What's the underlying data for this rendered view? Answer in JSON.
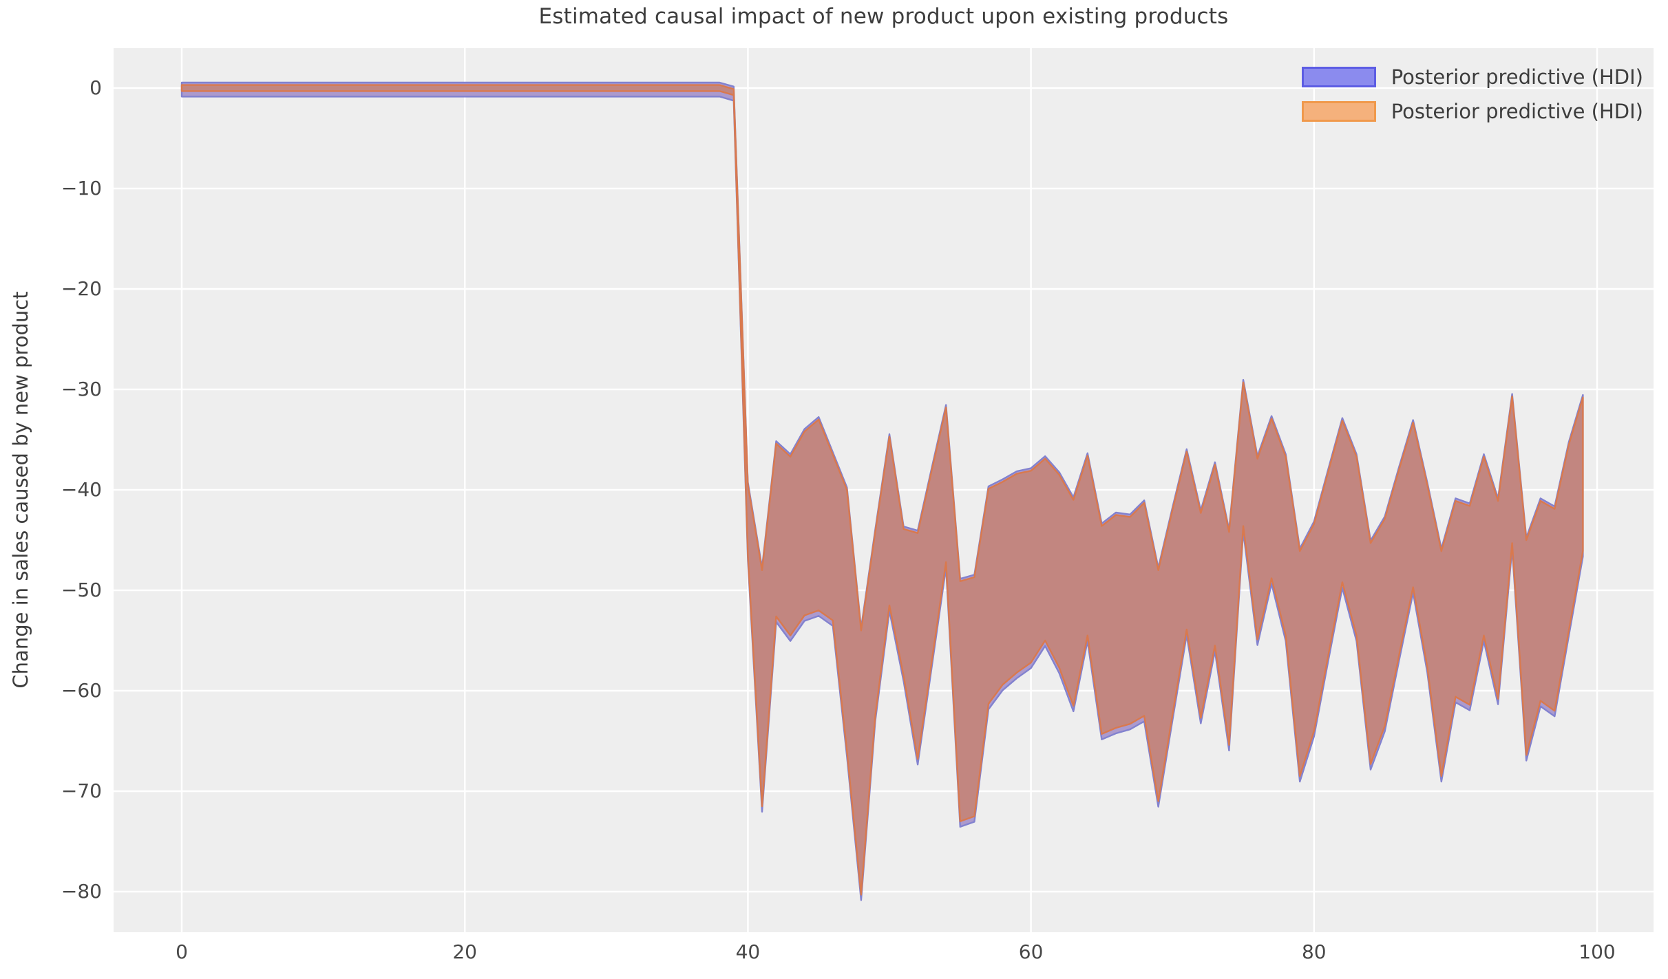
{
  "title": "Estimated causal impact of new product upon existing products",
  "y_axis_label": "Change in sales caused by new product",
  "legend": {
    "items": [
      {
        "label": "Posterior predictive (HDI)",
        "fill": "#8b8bee",
        "edge": "#5d5de4"
      },
      {
        "label": "Posterior predictive (HDI)",
        "fill": "#f5b17c",
        "edge": "#f0994c"
      }
    ]
  },
  "axes": {
    "x_ticks": [
      {
        "label": "0",
        "v": 0
      },
      {
        "label": "20",
        "v": 20
      },
      {
        "label": "40",
        "v": 40
      },
      {
        "label": "60",
        "v": 60
      },
      {
        "label": "80",
        "v": 80
      },
      {
        "label": "100",
        "v": 100
      }
    ],
    "y_ticks": [
      {
        "label": "0",
        "v": 0
      },
      {
        "label": "−10",
        "v": -10
      },
      {
        "label": "−20",
        "v": -20
      },
      {
        "label": "−30",
        "v": -30
      },
      {
        "label": "−40",
        "v": -40
      },
      {
        "label": "−50",
        "v": -50
      },
      {
        "label": "−60",
        "v": -60
      },
      {
        "label": "−70",
        "v": -70
      },
      {
        "label": "−80",
        "v": -80
      }
    ],
    "x_range": [
      -5,
      104
    ],
    "y_range": [
      4,
      -84
    ],
    "grid": "on",
    "legend_position": "upper right"
  },
  "chart_data": {
    "type": "area",
    "title": "Estimated causal impact of new product upon existing products",
    "xlabel": "",
    "ylabel": "Change in sales caused by new product",
    "description": "Two nearly identical posterior-predictive HDI bands (blue drawn under orange) for the causal impact; impact is ~0 for x=0..39, then drops to a band oscillating roughly between -30 and -80 for x=40..99.",
    "pre_period": {
      "x_start": 0,
      "x_end": 39,
      "upper": 0.3,
      "lower": -0.3
    },
    "post_start_x": 39,
    "post": {
      "x_first": 39,
      "upper": [
        -0.1,
        -39.5,
        -48.0,
        -35.4,
        -36.7,
        -34.2,
        -33.0,
        -36.5,
        -40.0,
        -54.0,
        -44.2,
        -34.7,
        -43.9,
        -44.3,
        -38.0,
        -31.8,
        -49.1,
        -48.7,
        -39.9,
        -39.2,
        -38.4,
        -38.1,
        -36.9,
        -38.5,
        -41.0,
        -36.6,
        -43.6,
        -42.5,
        -42.7,
        -41.3,
        -48.0,
        -42.0,
        -36.2,
        -42.3,
        -37.5,
        -44.2,
        -29.3,
        -36.9,
        -32.9,
        -36.7,
        -46.1,
        -43.4,
        -38.2,
        -33.1,
        -36.7,
        -45.3,
        -42.9,
        -38.0,
        -33.3,
        -39.5,
        -46.1,
        -41.1,
        -41.6,
        -36.7,
        -41.1,
        -30.7,
        -45.0,
        -41.1,
        -41.9,
        -35.5,
        -30.8
      ],
      "lower": [
        -0.7,
        -46.5,
        -71.5,
        -52.6,
        -54.5,
        -52.5,
        -52.0,
        -53.0,
        -66.0,
        -80.3,
        -62.5,
        -51.5,
        -58.5,
        -66.8,
        -57.0,
        -47.2,
        -73.0,
        -72.5,
        -61.3,
        -59.4,
        -58.2,
        -57.2,
        -55.0,
        -57.7,
        -61.5,
        -54.5,
        -64.3,
        -63.7,
        -63.3,
        -62.5,
        -71.0,
        -62.4,
        -53.9,
        -62.7,
        -55.5,
        -65.4,
        -43.6,
        -54.9,
        -48.8,
        -54.5,
        -68.5,
        -64.0,
        -56.5,
        -49.2,
        -54.5,
        -67.3,
        -63.5,
        -56.5,
        -49.7,
        -57.6,
        -68.5,
        -60.6,
        -61.4,
        -54.5,
        -60.8,
        -45.3,
        -66.4,
        -61.0,
        -62.0,
        -54.0,
        -46.1
      ]
    },
    "series": [
      {
        "name": "Posterior predictive (HDI)",
        "color": "#8b8bee",
        "note": "blue band, drawn first, fringes visible at band extremes"
      },
      {
        "name": "Posterior predictive (HDI)",
        "color": "#f5b17c",
        "note": "orange band, drawn on top; overlap renders brick-rose"
      }
    ],
    "colors": {
      "figure_bg": "#ffffff",
      "plot_bg": "#eeeeee",
      "grid": "#ffffff",
      "band_fill_blend": "#c28680",
      "band_edge_orange": "#d9794e",
      "band_edge_blue": "#8282cf",
      "band_fill_blue": "#ab9ace",
      "text": "#3d3d3d",
      "tick_text": "#484848"
    }
  }
}
